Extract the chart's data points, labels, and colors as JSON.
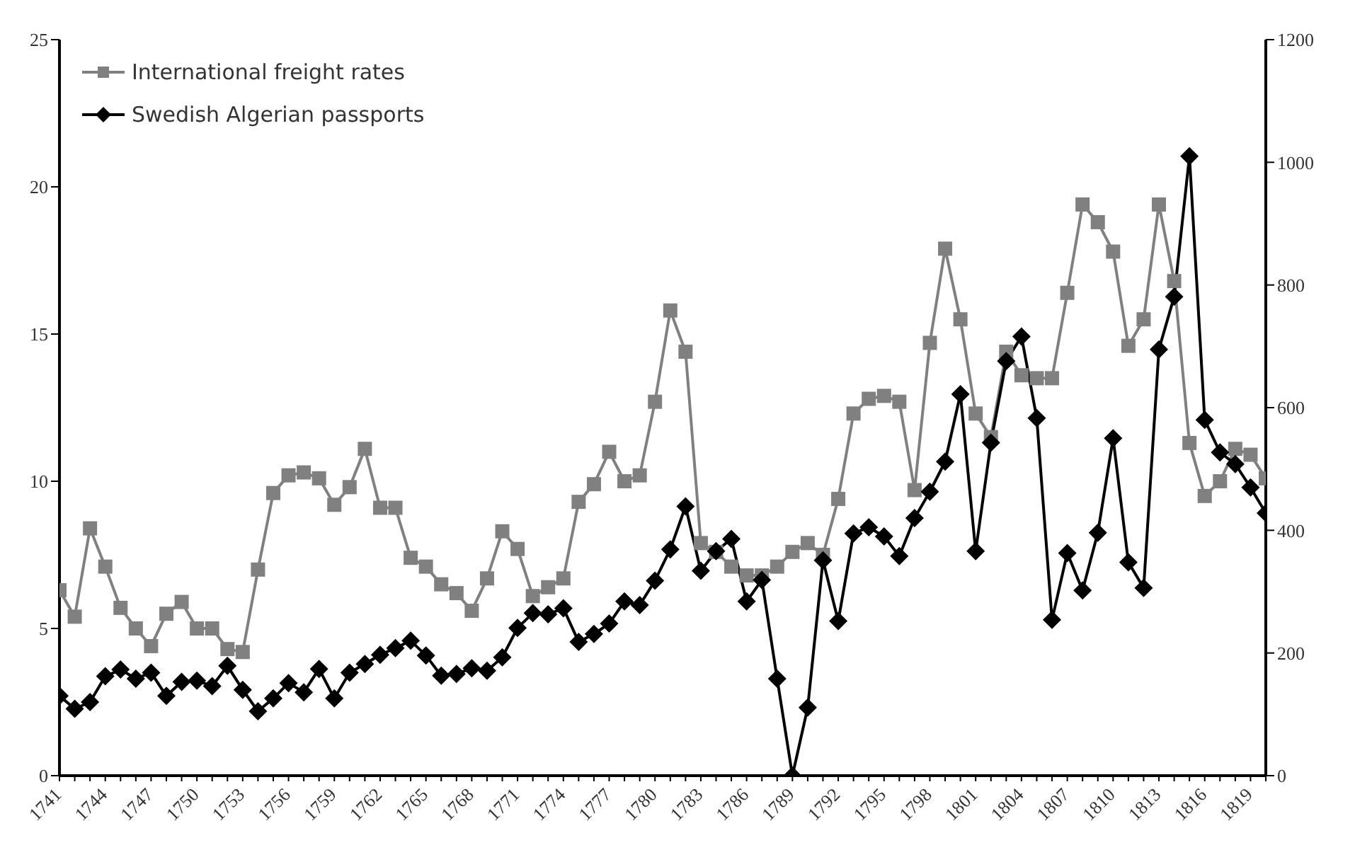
{
  "chart_data": {
    "type": "line",
    "x": [
      1741,
      1742,
      1743,
      1744,
      1745,
      1746,
      1747,
      1748,
      1749,
      1750,
      1751,
      1752,
      1753,
      1754,
      1755,
      1756,
      1757,
      1758,
      1759,
      1760,
      1761,
      1762,
      1763,
      1764,
      1765,
      1766,
      1767,
      1768,
      1769,
      1770,
      1771,
      1772,
      1773,
      1774,
      1775,
      1776,
      1777,
      1778,
      1779,
      1780,
      1781,
      1782,
      1783,
      1784,
      1785,
      1786,
      1787,
      1788,
      1789,
      1790,
      1791,
      1792,
      1793,
      1794,
      1795,
      1796,
      1797,
      1798,
      1799,
      1800,
      1801,
      1802,
      1803,
      1804,
      1805,
      1806,
      1807,
      1808,
      1809,
      1810,
      1811,
      1812,
      1813,
      1814,
      1815,
      1816,
      1817,
      1818,
      1819,
      1820
    ],
    "series": [
      {
        "name": "International freight rates",
        "color": "#808080",
        "marker": "square",
        "values": [
          6.3,
          5.4,
          8.4,
          7.1,
          5.7,
          5.0,
          4.4,
          5.5,
          5.9,
          5.0,
          5.0,
          4.3,
          4.2,
          7.0,
          9.6,
          10.2,
          10.3,
          10.1,
          9.2,
          9.8,
          11.1,
          9.1,
          9.1,
          7.4,
          7.1,
          6.5,
          6.2,
          5.6,
          6.7,
          8.3,
          7.7,
          6.1,
          6.4,
          6.7,
          9.3,
          9.9,
          11.0,
          10.0,
          10.2,
          12.7,
          15.8,
          14.4,
          7.9,
          7.6,
          7.1,
          6.8,
          6.8,
          7.1,
          7.6,
          7.9,
          7.5,
          9.4,
          12.3,
          12.8,
          12.9,
          12.7,
          9.7,
          14.7,
          17.9,
          15.5,
          12.3,
          11.5,
          14.4,
          13.6,
          13.5,
          13.5,
          16.4,
          19.4,
          18.8,
          17.8,
          14.6,
          15.5,
          19.4,
          16.8,
          11.3,
          9.5,
          10.0,
          11.1,
          10.9,
          10.1
        ]
      },
      {
        "name": "Swedish Algerian passports",
        "color": "#000000",
        "marker": "diamond",
        "axis": "y2",
        "values": [
          130,
          109,
          120,
          162,
          173,
          158,
          168,
          130,
          153,
          155,
          146,
          179,
          140,
          105,
          126,
          151,
          136,
          174,
          126,
          168,
          182,
          197,
          208,
          220,
          196,
          163,
          166,
          175,
          171,
          193,
          241,
          265,
          263,
          273,
          218,
          231,
          248,
          284,
          278,
          318,
          369,
          439,
          334,
          366,
          386,
          284,
          319,
          158,
          0,
          111,
          351,
          252,
          395,
          405,
          390,
          358,
          420,
          463,
          512,
          622,
          366,
          543,
          676,
          716,
          583,
          254,
          363,
          302,
          396,
          550,
          348,
          306,
          695,
          781,
          1010,
          580,
          527,
          508,
          470,
          428
        ]
      }
    ],
    "xlim": [
      1741,
      1820
    ],
    "xticks": [
      1741,
      {
        "value": 1742,
        "label": null
      },
      {
        "value": 1743,
        "label": null
      },
      1744,
      {
        "value": 1745,
        "label": null
      },
      {
        "value": 1746,
        "label": null
      },
      1747,
      {
        "value": 1748,
        "label": null
      },
      {
        "value": 1749,
        "label": null
      },
      1750,
      {
        "value": 1751,
        "label": null
      },
      {
        "value": 1752,
        "label": null
      },
      1753,
      {
        "value": 1754,
        "label": null
      },
      {
        "value": 1755,
        "label": null
      },
      1756,
      {
        "value": 1757,
        "label": null
      },
      {
        "value": 1758,
        "label": null
      },
      1759,
      {
        "value": 1760,
        "label": null
      },
      {
        "value": 1761,
        "label": null
      },
      1762,
      {
        "value": 1763,
        "label": null
      },
      {
        "value": 1764,
        "label": null
      },
      1765,
      {
        "value": 1766,
        "label": null
      },
      {
        "value": 1767,
        "label": null
      },
      1768,
      {
        "value": 1769,
        "label": null
      },
      {
        "value": 1770,
        "label": null
      },
      1771,
      {
        "value": 1772,
        "label": null
      },
      {
        "value": 1773,
        "label": null
      },
      1774,
      {
        "value": 1775,
        "label": null
      },
      {
        "value": 1776,
        "label": null
      },
      1777,
      {
        "value": 1778,
        "label": null
      },
      {
        "value": 1779,
        "label": null
      },
      1780,
      {
        "value": 1781,
        "label": null
      },
      {
        "value": 1782,
        "label": null
      },
      1783,
      {
        "value": 1784,
        "label": null
      },
      {
        "value": 1785,
        "label": null
      },
      1786,
      {
        "value": 1787,
        "label": null
      },
      {
        "value": 1788,
        "label": null
      },
      1789,
      {
        "value": 1790,
        "label": null
      },
      {
        "value": 1791,
        "label": null
      },
      1792,
      {
        "value": 1793,
        "label": null
      },
      {
        "value": 1794,
        "label": null
      },
      1795,
      {
        "value": 1796,
        "label": null
      },
      {
        "value": 1797,
        "label": null
      },
      1798,
      {
        "value": 1799,
        "label": null
      },
      {
        "value": 1800,
        "label": null
      },
      1801,
      {
        "value": 1802,
        "label": null
      },
      {
        "value": 1803,
        "label": null
      },
      1804,
      {
        "value": 1805,
        "label": null
      },
      {
        "value": 1806,
        "label": null
      },
      1807,
      {
        "value": 1808,
        "label": null
      },
      {
        "value": 1809,
        "label": null
      },
      1810,
      {
        "value": 1811,
        "label": null
      },
      {
        "value": 1812,
        "label": null
      },
      1813,
      {
        "value": 1814,
        "label": null
      },
      {
        "value": 1815,
        "label": null
      },
      1816,
      {
        "value": 1817,
        "label": null
      },
      {
        "value": 1818,
        "label": null
      },
      1819,
      {
        "value": 1820,
        "label": null
      }
    ],
    "ylim": [
      0,
      25
    ],
    "yticks": [
      0,
      5,
      10,
      15,
      20,
      25
    ],
    "y2lim": [
      0,
      1200
    ],
    "y2ticks": [
      0,
      200,
      400,
      600,
      800,
      1000,
      1200
    ],
    "grid": false,
    "legend": "top left",
    "line_style": "solid"
  }
}
